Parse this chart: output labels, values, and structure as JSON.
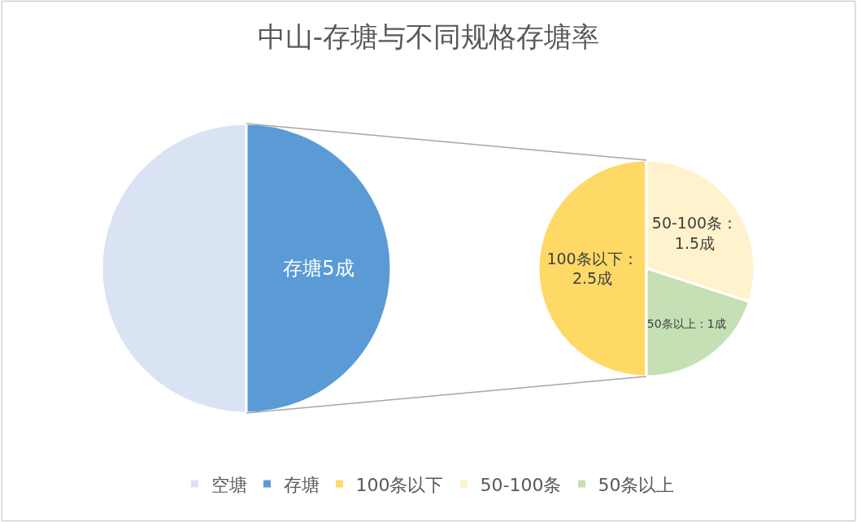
{
  "chart_data": [
    {
      "type": "pie",
      "title": "中山-存塘与不同规格存塘率",
      "categories": [
        "空塘",
        "存塘"
      ],
      "values": [
        5,
        5
      ],
      "colors": [
        "#dae3f3",
        "#5b9bd5"
      ],
      "value_labels": [
        null,
        "存塘5成"
      ],
      "legend": "bottom"
    },
    {
      "type": "pie",
      "categories": [
        "100条以下",
        "50-100条",
        "50条以上"
      ],
      "values": [
        2.5,
        1.5,
        1
      ],
      "colors": [
        "#ffd966",
        "#fff2cc",
        "#c5e0b4"
      ],
      "value_labels": [
        "100条以下：\n2.5成",
        "50-100条：\n1.5成",
        "50条以上：1成"
      ],
      "legend": "bottom"
    }
  ]
}
